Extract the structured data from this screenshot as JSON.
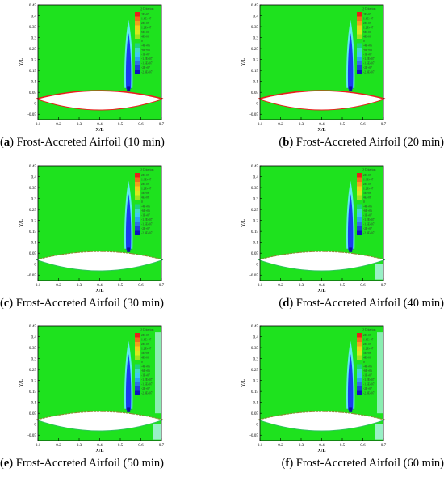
{
  "figure": {
    "ylabel": "Y/L",
    "xlabel": "X/L",
    "legend_title": "Q Criterion",
    "legend_entries": [
      "2E+07",
      "1.8E+07",
      "2E+07",
      "1.2E+07",
      "5E+06",
      "4E+06",
      "0",
      "-4E+06",
      "-6E+06",
      "-1E+07",
      "-1.2E+07",
      "-1.5E+07",
      "-2E+07",
      "-2.4E+07"
    ],
    "legend_colors": [
      "#e8201c",
      "#f06a1c",
      "#f0a01c",
      "#f0d01c",
      "#d8e81c",
      "#a0e020",
      "#1ee21e",
      "#20d080",
      "#40d8c8",
      "#40c8f0",
      "#30a0f0",
      "#3070e8",
      "#2040d8",
      "#1010c0"
    ],
    "y_ticks": [
      "0.45",
      "0.4",
      "0.35",
      "0.3",
      "0.25",
      "0.2",
      "0.15",
      "0.1",
      "0.05",
      "0",
      "-0.05"
    ],
    "x_ticks": [
      "0.1",
      "0.2",
      "0.3",
      "0.4",
      "0.5",
      "0.6",
      "0.7"
    ],
    "colors": {
      "background_field": "#1ee21e",
      "airfoil": "#ffffff",
      "vortex_blue": "#1a3cf0",
      "vortex_cyan": "#60e8f0"
    }
  },
  "panels": [
    {
      "letter": "a",
      "caption": "Frost-Accreted Airfoil (10 min)"
    },
    {
      "letter": "b",
      "caption": "Frost-Accreted Airfoil (20 min)"
    },
    {
      "letter": "c",
      "caption": "Frost-Accreted Airfoil (30 min)"
    },
    {
      "letter": "d",
      "caption": "Frost-Accreted Airfoil (40 min)"
    },
    {
      "letter": "e",
      "caption": "Frost-Accreted Airfoil (50 min)"
    },
    {
      "letter": "f",
      "caption": "Frost-Accreted Airfoil (60 min)"
    }
  ]
}
